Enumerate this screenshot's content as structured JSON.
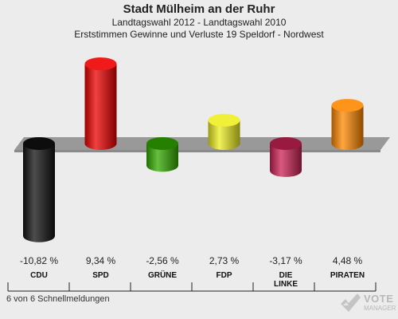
{
  "header": {
    "title": "Stadt Mülheim an der Ruhr",
    "subtitle1": "Landtagswahl 2012 - Landtagswahl 2010",
    "subtitle2": "Erststimmen Gewinne und Verluste 19 Speldorf - Nordwest"
  },
  "footer": {
    "note": "6 von 6 Schnellmeldungen"
  },
  "logo": {
    "text": "VOTE",
    "sub": "MANAGER"
  },
  "chart_data": {
    "type": "bar",
    "categories": [
      "CDU",
      "SPD",
      "GRÜNE",
      "FDP",
      "DIE LINKE",
      "PIRATEN"
    ],
    "category_lines": [
      [
        "CDU"
      ],
      [
        "SPD"
      ],
      [
        "GRÜNE"
      ],
      [
        "FDP"
      ],
      [
        "DIE",
        "LINKE"
      ],
      [
        "PIRATEN"
      ]
    ],
    "values": [
      -10.82,
      9.34,
      -2.56,
      2.73,
      -3.17,
      4.48
    ],
    "value_labels": [
      "-10,82 %",
      "9,34 %",
      "-2,56 %",
      "2,73 %",
      "-3,17 %",
      "4,48 %"
    ],
    "colors": [
      "#111111",
      "#ee0000",
      "#33aa00",
      "#eeee22",
      "#cc2255",
      "#ff8800"
    ],
    "title": "Stadt Mülheim an der Ruhr",
    "xlabel": "",
    "ylabel": "",
    "ylim": [
      -11,
      11
    ],
    "legend": "none",
    "grid": false
  }
}
